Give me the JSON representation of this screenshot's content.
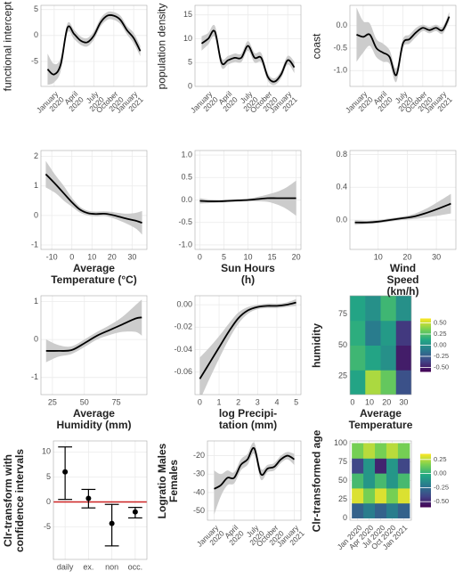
{
  "chart_data": [
    {
      "type": "line",
      "ylabel": "functional intercept",
      "color": "#000000",
      "band_color": "#cccccc",
      "grid": true,
      "x": [
        "2019-12",
        "2020-01",
        "2020-02",
        "2020-03",
        "2020-04",
        "2020-05",
        "2020-06",
        "2020-07",
        "2020-08",
        "2020-09",
        "2020-10",
        "2020-11",
        "2020-12",
        "2021-01",
        "2021-02"
      ],
      "values": [
        -6.5,
        -7.5,
        -5.5,
        1.5,
        0.3,
        -1,
        -1.3,
        0,
        2.5,
        3.8,
        3.8,
        3,
        1,
        -0.5,
        -3
      ],
      "lower": [
        -9.5,
        -9,
        -6.8,
        0.5,
        -0.7,
        -1.8,
        -2.1,
        -0.8,
        1.7,
        3,
        3,
        2.2,
        0.2,
        -1.5,
        -4
      ],
      "upper": [
        -3.5,
        -5.5,
        -4.2,
        2.3,
        1.1,
        -0.2,
        -0.5,
        0.8,
        3.3,
        4.5,
        4.5,
        3.8,
        1.8,
        0.5,
        -2
      ],
      "xlim": [
        "2019-11",
        "2021-03"
      ],
      "ylim": [
        -9.8,
        5.8
      ],
      "xticks": [
        {
          "value": "2020-01",
          "label": "January\n2020"
        },
        {
          "value": "2020-04",
          "label": "April\n2020"
        },
        {
          "value": "2020-07",
          "label": "July\n2020"
        },
        {
          "value": "2020-10",
          "label": "October\n2020"
        },
        {
          "value": "2021-01",
          "label": "January\n2021"
        }
      ],
      "yticks": [
        -5,
        0,
        5
      ]
    },
    {
      "type": "line",
      "ylabel": "population density",
      "color": "#000000",
      "band_color": "#cccccc",
      "grid": true,
      "x": [
        "2019-12",
        "2020-01",
        "2020-02",
        "2020-03",
        "2020-04",
        "2020-05",
        "2020-06",
        "2020-07",
        "2020-08",
        "2020-09",
        "2020-10",
        "2020-11",
        "2020-12",
        "2021-01",
        "2021-02"
      ],
      "values": [
        9,
        10,
        11.5,
        5,
        5.5,
        6,
        6,
        8.5,
        6,
        6,
        2,
        1,
        2.5,
        5.5,
        4
      ],
      "lower": [
        7.5,
        8.8,
        10.3,
        4,
        4.6,
        5.1,
        5.1,
        7.5,
        5,
        5,
        1.2,
        0.3,
        1.7,
        4.6,
        2.8
      ],
      "upper": [
        10.5,
        11.2,
        12.7,
        6,
        6.4,
        6.9,
        6.9,
        9.5,
        7,
        7,
        2.8,
        1.7,
        3.3,
        6.4,
        5.2
      ],
      "xlim": [
        "2019-11",
        "2021-03"
      ],
      "ylim": [
        0,
        17
      ],
      "xticks": [
        {
          "value": "2020-01",
          "label": "January\n2020"
        },
        {
          "value": "2020-04",
          "label": "April\n2020"
        },
        {
          "value": "2020-07",
          "label": "July\n2020"
        },
        {
          "value": "2020-10",
          "label": "October\n2020"
        },
        {
          "value": "2021-01",
          "label": "January\n2021"
        }
      ],
      "yticks": [
        0,
        5,
        10,
        15
      ]
    },
    {
      "type": "line",
      "ylabel": "coast",
      "color": "#000000",
      "band_color": "#cccccc",
      "grid": true,
      "x": [
        "2019-12",
        "2020-01",
        "2020-02",
        "2020-03",
        "2020-04",
        "2020-05",
        "2020-06",
        "2020-07",
        "2020-08",
        "2020-09",
        "2020-10",
        "2020-11",
        "2020-12",
        "2021-01",
        "2021-02"
      ],
      "values": [
        -0.2,
        -0.25,
        -0.2,
        -0.5,
        -0.6,
        -0.7,
        -1.1,
        -0.4,
        -0.3,
        -0.15,
        -0.05,
        -0.1,
        -0.05,
        -0.1,
        0.2
      ],
      "lower": [
        -0.8,
        -0.6,
        -0.45,
        -0.7,
        -0.8,
        -0.85,
        -1.25,
        -0.5,
        -0.4,
        -0.25,
        -0.12,
        -0.17,
        -0.12,
        -0.18,
        0.1
      ],
      "upper": [
        0.4,
        0.1,
        0.05,
        -0.3,
        -0.4,
        -0.55,
        -0.95,
        -0.3,
        -0.2,
        -0.05,
        0.02,
        -0.03,
        0.02,
        -0.02,
        0.3
      ],
      "xlim": [
        "2019-11",
        "2021-03"
      ],
      "ylim": [
        -1.35,
        0.45
      ],
      "xticks": [
        {
          "value": "2020-01",
          "label": "January\n2020"
        },
        {
          "value": "2020-04",
          "label": "April\n2020"
        },
        {
          "value": "2020-07",
          "label": "July\n2020"
        },
        {
          "value": "2020-10",
          "label": "October\n2020"
        },
        {
          "value": "2021-01",
          "label": "January\n2021"
        }
      ],
      "yticks": [
        {
          "value": -1,
          "label": "-1.0"
        },
        {
          "value": -0.5,
          "label": "-0.5"
        },
        {
          "value": 0,
          "label": "0.0"
        }
      ]
    },
    {
      "type": "line",
      "xlabel": "Average\nTemperature (°C)",
      "ylabel": "",
      "color": "#000000",
      "band_color": "#cccccc",
      "grid": true,
      "x": [
        -13,
        -8,
        -4,
        0,
        4,
        8,
        12,
        16,
        20,
        24,
        28,
        32,
        35
      ],
      "values": [
        1.4,
        1.05,
        0.75,
        0.45,
        0.2,
        0.08,
        0.05,
        0.06,
        0.02,
        -0.05,
        -0.12,
        -0.18,
        -0.25
      ],
      "lower": [
        0.95,
        0.75,
        0.5,
        0.3,
        0.1,
        0,
        -0.03,
        -0.02,
        -0.08,
        -0.18,
        -0.3,
        -0.45,
        -0.65
      ],
      "upper": [
        1.85,
        1.35,
        1,
        0.6,
        0.3,
        0.16,
        0.13,
        0.14,
        0.12,
        0.08,
        0.06,
        0.09,
        0.15
      ],
      "xlim": [
        -15.4,
        37.4
      ],
      "ylim": [
        -1.15,
        2.2
      ],
      "xticks": [
        -10,
        0,
        10,
        20,
        30
      ],
      "yticks": [
        -1,
        0,
        1,
        2
      ]
    },
    {
      "type": "line",
      "xlabel": "Sun Hours\n(h)",
      "ylabel": "",
      "color": "#000000",
      "band_color": "#cccccc",
      "grid": true,
      "x": [
        0,
        2,
        4,
        6,
        8,
        10,
        12,
        14,
        16,
        18,
        20
      ],
      "values": [
        -0.02,
        -0.03,
        -0.03,
        -0.02,
        -0.01,
        0,
        0.02,
        0.04,
        0.04,
        0.04,
        0.04
      ],
      "lower": [
        -0.08,
        -0.07,
        -0.06,
        -0.05,
        -0.04,
        -0.03,
        -0.03,
        -0.04,
        -0.1,
        -0.2,
        -0.35
      ],
      "upper": [
        0.04,
        0.01,
        0,
        0.01,
        0.02,
        0.03,
        0.07,
        0.12,
        0.18,
        0.28,
        0.43
      ],
      "xlim": [
        -1,
        21
      ],
      "ylim": [
        -1.1,
        1.1
      ],
      "xticks": [
        0,
        5,
        10,
        15,
        20
      ],
      "yticks": [
        {
          "value": -1,
          "label": "-1.0"
        },
        {
          "value": -0.5,
          "label": "-0.5"
        },
        {
          "value": 0,
          "label": "0.0"
        },
        {
          "value": 0.5,
          "label": "0.5"
        },
        {
          "value": 1,
          "label": "1.0"
        }
      ]
    },
    {
      "type": "line",
      "xlabel": "Wind Speed\n(km/h)",
      "ylabel": "",
      "color": "#000000",
      "band_color": "#cccccc",
      "grid": true,
      "x": [
        2,
        6,
        10,
        14,
        18,
        22,
        26,
        30,
        35
      ],
      "values": [
        -0.03,
        -0.03,
        -0.02,
        0,
        0.02,
        0.04,
        0.08,
        0.13,
        0.2
      ],
      "lower": [
        -0.06,
        -0.05,
        -0.04,
        -0.02,
        0,
        0.01,
        0.03,
        0.05,
        0.08
      ],
      "upper": [
        0,
        -0.01,
        0,
        0.02,
        0.04,
        0.07,
        0.13,
        0.21,
        0.32
      ],
      "xlim": [
        0.3,
        36.7
      ],
      "ylim": [
        -0.36,
        0.85
      ],
      "xticks": [
        10,
        20,
        30
      ],
      "yticks": [
        {
          "value": 0,
          "label": "0.0"
        },
        {
          "value": 0.4,
          "label": "0.4"
        },
        {
          "value": 0.8,
          "label": "0.8"
        }
      ]
    },
    {
      "type": "line",
      "xlabel": "Average\nHumidity (mm)",
      "ylabel": "",
      "color": "#000000",
      "band_color": "#cccccc",
      "grid": true,
      "x": [
        20,
        30,
        40,
        50,
        60,
        70,
        80,
        90,
        95
      ],
      "values": [
        -0.3,
        -0.3,
        -0.28,
        -0.1,
        0.1,
        0.25,
        0.4,
        0.55,
        0.58
      ],
      "lower": [
        -0.6,
        -0.45,
        -0.38,
        -0.2,
        0,
        0.12,
        0.2,
        0.2,
        0.1
      ],
      "upper": [
        0,
        -0.15,
        -0.18,
        0,
        0.2,
        0.38,
        0.6,
        0.9,
        1.05
      ],
      "xlim": [
        16,
        99
      ],
      "ylim": [
        -1.45,
        1.15
      ],
      "xticks": [
        25,
        50,
        75
      ],
      "yticks": [
        -1,
        0,
        1
      ]
    },
    {
      "type": "line",
      "xlabel": "log Precipi-\ntation (mm)",
      "ylabel": "",
      "color": "#000000",
      "band_color": "#cccccc",
      "grid": true,
      "x": [
        0,
        0.5,
        1,
        1.5,
        2,
        2.5,
        3,
        3.5,
        4,
        4.5,
        5
      ],
      "values": [
        -0.066,
        -0.052,
        -0.038,
        -0.024,
        -0.012,
        -0.005,
        -0.002,
        -0.001,
        -0.001,
        0,
        0.002
      ],
      "lower": [
        -0.085,
        -0.066,
        -0.048,
        -0.031,
        -0.017,
        -0.008,
        -0.004,
        -0.003,
        -0.003,
        -0.002,
        -0.001
      ],
      "upper": [
        -0.047,
        -0.038,
        -0.028,
        -0.017,
        -0.007,
        -0.002,
        0,
        0.001,
        0.001,
        0.002,
        0.005
      ],
      "xlim": [
        -0.25,
        5.25
      ],
      "ylim": [
        -0.08,
        0.008
      ],
      "xticks": [
        0,
        1,
        2,
        3,
        4,
        5
      ],
      "yticks": [
        {
          "value": -0.06,
          "label": "-0.06"
        },
        {
          "value": -0.04,
          "label": "-0.04"
        },
        {
          "value": -0.02,
          "label": "-0.02"
        },
        {
          "value": 0,
          "label": "0.00"
        }
      ]
    },
    {
      "type": "heatmap",
      "xlabel": "Average\nTemperature",
      "ylabel": "humidity",
      "colormap": "viridis",
      "grid": true,
      "x": [
        3,
        12,
        21,
        30
      ],
      "y": [
        20,
        40,
        60,
        80
      ],
      "z": [
        [
          0.1,
          0.45,
          0.3,
          -0.3
        ],
        [
          0.2,
          0.1,
          0,
          -0.5
        ],
        [
          0.15,
          -0.1,
          0.05,
          -0.4
        ],
        [
          0.1,
          0,
          0.2,
          0
        ]
      ],
      "xlim": [
        -1.5,
        34.5
      ],
      "ylim": [
        10,
        90
      ],
      "xticks": [
        0,
        10,
        20,
        30
      ],
      "yticks": [
        25,
        50,
        75
      ],
      "zlim": [
        -0.6,
        0.6
      ],
      "zticks": [
        {
          "value": -0.5,
          "label": "-0.50"
        },
        {
          "value": -0.25,
          "label": "-0.25"
        },
        {
          "value": 0,
          "label": "0.00"
        },
        {
          "value": 0.25,
          "label": "0.25"
        },
        {
          "value": 0.5,
          "label": "0.50"
        }
      ]
    },
    {
      "type": "errorbar",
      "ylabel": "Clr-transform with\nconfidence intervals",
      "color": "#000000",
      "hline": 0,
      "hline_color": "#cc2222",
      "grid": true,
      "categories": [
        "daily",
        "ex.",
        "non",
        "occ."
      ],
      "values": [
        6,
        0.7,
        -4.3,
        -2
      ],
      "lower": [
        0.5,
        -1.2,
        -8.8,
        -3.2
      ],
      "upper": [
        11,
        2.5,
        -0.5,
        -1.1
      ],
      "ylim": [
        -11.5,
        12.2
      ],
      "yticks": [
        -5,
        0,
        5,
        10
      ]
    },
    {
      "type": "line",
      "ylabel": "Logratio Males\nFemales",
      "color": "#000000",
      "band_color": "#cccccc",
      "grid": true,
      "x": [
        "2020-01",
        "2020-02",
        "2020-03",
        "2020-04",
        "2020-05",
        "2020-06",
        "2020-07",
        "2020-08",
        "2020-09",
        "2020-10",
        "2020-11",
        "2020-12",
        "2021-01"
      ],
      "values": [
        -38,
        -36,
        -32,
        -32,
        -25,
        -22,
        -16,
        -30,
        -27,
        -26,
        -22,
        -20,
        -22
      ],
      "lower": [
        -52,
        -42,
        -36,
        -35,
        -28,
        -25,
        -19,
        -33,
        -29,
        -28,
        -24,
        -22,
        -25
      ],
      "upper": [
        -28,
        -30,
        -28,
        -29,
        -22,
        -19,
        -13,
        -27,
        -25,
        -24,
        -20,
        -18,
        -19
      ],
      "xlim": [
        "2019-12",
        "2021-02"
      ],
      "ylim": [
        -55,
        -12
      ],
      "xticks": [
        {
          "value": "2020-01",
          "label": "January\n2020"
        },
        {
          "value": "2020-04",
          "label": "April\n2020"
        },
        {
          "value": "2020-07",
          "label": "July\n2020"
        },
        {
          "value": "2020-10",
          "label": "October\n2020"
        },
        {
          "value": "2021-01",
          "label": "January\n2021"
        }
      ],
      "yticks": [
        -50,
        -40,
        -30,
        -20
      ]
    },
    {
      "type": "heatmap",
      "ylabel": "Clr-transformed age",
      "colormap": "viridis",
      "grid": true,
      "x": [
        "2020-01",
        "2020-04",
        "2020-07",
        "2020-10",
        "2021-01"
      ],
      "y": [
        10,
        30,
        50,
        70,
        90
      ],
      "z": [
        [
          -0.3,
          -0.2,
          -0.3,
          -0.2,
          -0.3
        ],
        [
          0.3,
          0.15,
          0.3,
          0.15,
          0.3
        ],
        [
          0.05,
          -0.1,
          0.05,
          -0.1,
          0.05
        ],
        [
          -0.4,
          -0.1,
          -0.5,
          -0.1,
          -0.4
        ],
        [
          0.15,
          0.25,
          0.15,
          0.25,
          0.15
        ]
      ],
      "xlim": [
        "2019-11",
        "2021-03"
      ],
      "ylim": [
        -3,
        103
      ],
      "xticks": [
        {
          "value": "2020-01",
          "label": "Jan 2020"
        },
        {
          "value": "2020-04",
          "label": "Apr 2020"
        },
        {
          "value": "2020-07",
          "label": "Jul 2020"
        },
        {
          "value": "2020-10",
          "label": "Oct 2020"
        },
        {
          "value": "2021-01",
          "label": "Jan 2021"
        }
      ],
      "yticks": [
        0,
        25,
        50,
        75,
        100
      ],
      "zlim": [
        -0.6,
        0.35
      ],
      "zticks": [
        {
          "value": -0.5,
          "label": "-0.50"
        },
        {
          "value": -0.25,
          "label": "-0.25"
        },
        {
          "value": 0,
          "label": "0.00"
        },
        {
          "value": 0.25,
          "label": "0.25"
        }
      ]
    }
  ]
}
